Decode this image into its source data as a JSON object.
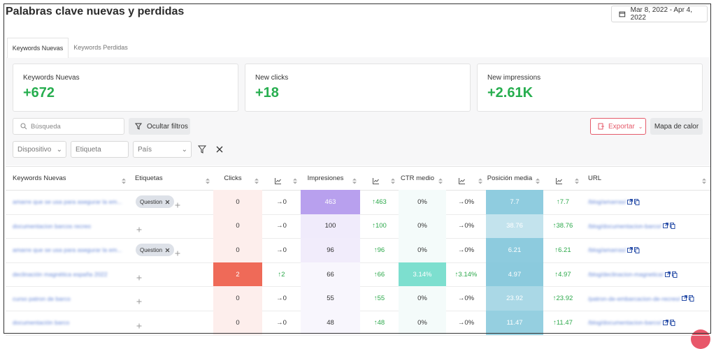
{
  "header": {
    "title": "Palabras clave nuevas y perdidas",
    "date_range": "Mar 8, 2022 - Apr 4, 2022"
  },
  "tabs": [
    "Keywords Nuevas",
    "Keywords Perdidas"
  ],
  "cards": [
    {
      "label": "Keywords Nuevas",
      "value": "+672"
    },
    {
      "label": "New clicks",
      "value": "+18"
    },
    {
      "label": "New impressions",
      "value": "+2.61K"
    }
  ],
  "filters": {
    "search_placeholder": "Búsqueda",
    "hide_filters": "Ocultar filtros",
    "export": "Exportar",
    "heatmap": "Mapa de calor",
    "device": "Dispositivo",
    "tag": "Etiqueta",
    "country": "País"
  },
  "table": {
    "columns": [
      "Keywords Nuevas",
      "Etiquetas",
      "Clicks",
      "Impresiones",
      "CTR medio",
      "Posición media",
      "URL"
    ],
    "rows": [
      {
        "keyword": "amarre que se usa para asegurar la em...",
        "tag": "Question",
        "clicks": "0",
        "clicks_change": "→0",
        "impressions": "463",
        "impressions_change": "↑463",
        "ctr": "0%",
        "ctr_change": "→0%",
        "position": "7.7",
        "position_change": "↑7.7",
        "url": "/blog/amarras/"
      },
      {
        "keyword": "documentacion barcos recreo",
        "clicks": "0",
        "clicks_change": "→0",
        "impressions": "100",
        "impressions_change": "↑100",
        "ctr": "0%",
        "ctr_change": "→0%",
        "position": "38.76",
        "position_change": "↑38.76",
        "url": "/blog/documentacion-barco/"
      },
      {
        "keyword": "amarre que se usa para asegurar la em...",
        "tag": "Question",
        "clicks": "0",
        "clicks_change": "→0",
        "impressions": "96",
        "impressions_change": "↑96",
        "ctr": "0%",
        "ctr_change": "→0%",
        "position": "6.21",
        "position_change": "↑6.21",
        "url": "/blog/amarras/"
      },
      {
        "keyword": "declinación magnética españa 2022",
        "clicks": "2",
        "clicks_change": "↑2",
        "impressions": "66",
        "impressions_change": "↑66",
        "ctr": "3.14%",
        "ctr_change": "↑3.14%",
        "position": "4.97",
        "position_change": "↑4.97",
        "url": "/blog/declinacion-magnetica/"
      },
      {
        "keyword": "curso patron de barco",
        "clicks": "0",
        "clicks_change": "→0",
        "impressions": "55",
        "impressions_change": "↑55",
        "ctr": "0%",
        "ctr_change": "→0%",
        "position": "23.92",
        "position_change": "↑23.92",
        "url": "/patron-de-embarcacion-de-recreo/"
      },
      {
        "keyword": "documentación barco",
        "clicks": "0",
        "clicks_change": "→0",
        "impressions": "48",
        "impressions_change": "↑48",
        "ctr": "0%",
        "ctr_change": "→0%",
        "position": "11.47",
        "position_change": "↑11.47",
        "url": "/blog/documentacion-barco/"
      }
    ]
  }
}
